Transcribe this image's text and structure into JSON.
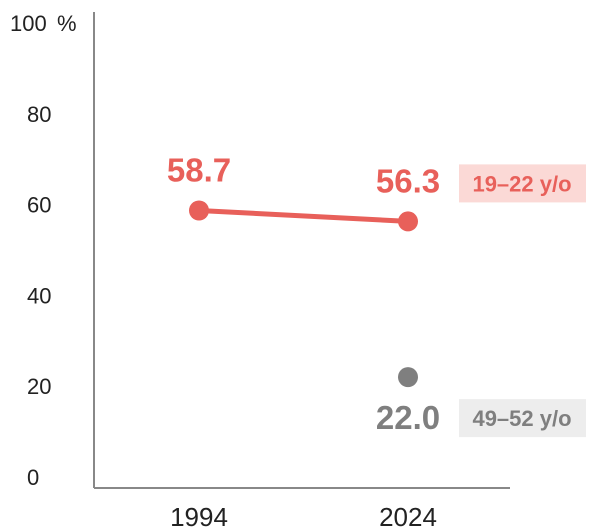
{
  "chart_data": {
    "type": "line",
    "title": "",
    "xlabel": "",
    "ylabel": "",
    "ylim": [
      0,
      100
    ],
    "y_ticks": [
      "0",
      "20",
      "40",
      "60",
      "80",
      "100"
    ],
    "y_unit": "%",
    "categories": [
      "1994",
      "2024"
    ],
    "grid": false,
    "series": [
      {
        "name": "19–22 y/o",
        "color": "#e8605a",
        "label_bg": "#fbd9d6",
        "values": [
          58.7,
          56.3
        ],
        "labels": [
          "58.7",
          "56.3"
        ]
      },
      {
        "name": "49–52 y/o",
        "color": "#7f7f7f",
        "label_bg": "#ededed",
        "values": [
          null,
          22.0
        ],
        "labels": [
          "",
          "22.0"
        ]
      }
    ]
  }
}
